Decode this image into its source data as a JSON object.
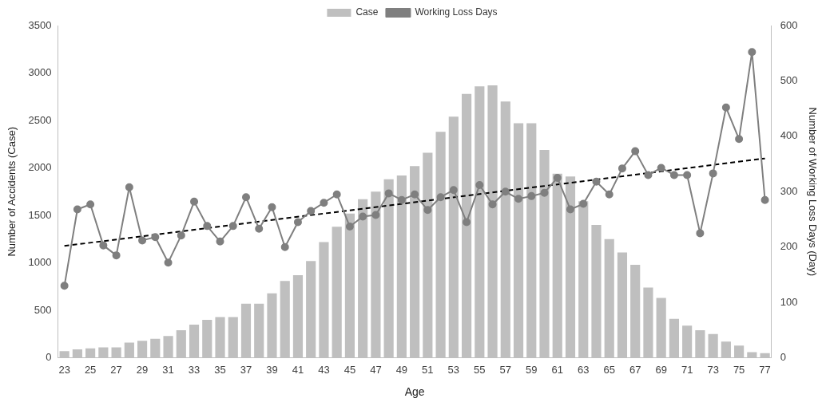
{
  "chart_data": {
    "type": "bar",
    "xlabel": "Age",
    "ylabel": "Number of Accidents (Case)",
    "y2label": "Number of Working Loss Days (Day)",
    "categories": [
      "23",
      null,
      "25",
      null,
      "27",
      null,
      "29",
      null,
      "31",
      null,
      "33",
      null,
      "35",
      null,
      "37",
      null,
      "39",
      null,
      "41",
      null,
      "43",
      null,
      "45",
      null,
      "47",
      null,
      "49",
      null,
      "51",
      null,
      "53",
      null,
      "55",
      null,
      "57",
      null,
      "59",
      null,
      "61",
      null,
      "63",
      null,
      "65",
      null,
      "67",
      null,
      "69",
      null,
      "71",
      null,
      "73",
      null,
      "75",
      null,
      "77"
    ],
    "series": [
      {
        "name": "Case",
        "color": "#bfbfbf",
        "values": [
          70,
          90,
          100,
          110,
          110,
          160,
          180,
          200,
          230,
          290,
          350,
          400,
          430,
          430,
          570,
          570,
          680,
          810,
          870,
          1020,
          1220,
          1380,
          1520,
          1670,
          1750,
          1880,
          1920,
          2020,
          2160,
          2380,
          2540,
          2780,
          2860,
          2870,
          2700,
          2470,
          2470,
          2190,
          1940,
          1910,
          1650,
          1400,
          1250,
          1110,
          980,
          740,
          630,
          410,
          340,
          290,
          250,
          170,
          130,
          60,
          50
        ]
      },
      {
        "name": "Working Loss Days",
        "type": "line",
        "axis": "y2",
        "color": "#7f7f7f",
        "marker": "circle",
        "values": [
          130,
          268,
          277,
          203,
          185,
          308,
          212,
          218,
          172,
          221,
          282,
          238,
          210,
          238,
          290,
          233,
          272,
          200,
          245,
          265,
          280,
          295,
          237,
          255,
          258,
          297,
          285,
          295,
          267,
          290,
          303,
          245,
          312,
          277,
          300,
          287,
          292,
          298,
          325,
          268,
          278,
          318,
          295,
          342,
          373,
          330,
          343,
          330,
          330,
          225,
          333,
          452,
          395,
          552,
          285
        ]
      },
      {
        "type": "line",
        "axis": "y2",
        "color": "#000000",
        "marker": "none",
        "line_style": "dashed",
        "x": [
          "23",
          "77"
        ],
        "values": [
          202,
          360
        ]
      }
    ],
    "ylim": [
      0,
      3500
    ],
    "yticks": [
      0,
      500,
      1000,
      1500,
      2000,
      2500,
      3000,
      3500
    ],
    "y2lim": [
      0,
      600
    ],
    "y2ticks": [
      0,
      100,
      200,
      300,
      400,
      500,
      600
    ],
    "grid": false,
    "legend": "top"
  }
}
